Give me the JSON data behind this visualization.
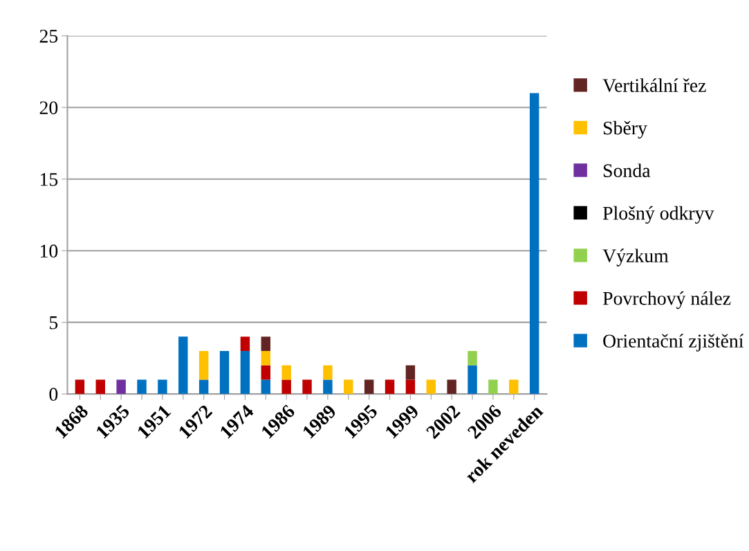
{
  "chart_data": {
    "type": "bar",
    "stacked": true,
    "categories": [
      "1868",
      null,
      "1935",
      null,
      "1951",
      null,
      "1972",
      null,
      "1974",
      null,
      "1986",
      null,
      "1989",
      null,
      "1995",
      null,
      "1999",
      null,
      "2002",
      null,
      "2006",
      null,
      "rok neveden"
    ],
    "series": [
      {
        "name": "Orientační zjištění",
        "color": "#0070c0",
        "values": [
          0,
          0,
          0,
          1,
          1,
          4,
          1,
          3,
          3,
          1,
          0,
          0,
          1,
          0,
          0,
          0,
          0,
          0,
          0,
          2,
          0,
          0,
          21
        ]
      },
      {
        "name": "Povrchový nález",
        "color": "#c00000",
        "values": [
          1,
          1,
          0,
          0,
          0,
          0,
          0,
          0,
          1,
          1,
          1,
          1,
          0,
          0,
          0,
          1,
          1,
          0,
          0,
          0,
          0,
          0,
          0
        ]
      },
      {
        "name": "Výzkum",
        "color": "#92d050",
        "values": [
          0,
          0,
          0,
          0,
          0,
          0,
          0,
          0,
          0,
          0,
          0,
          0,
          0,
          0,
          0,
          0,
          0,
          0,
          0,
          1,
          1,
          0,
          0
        ]
      },
      {
        "name": "Plošný odkryv",
        "color": "#000000",
        "values": [
          0,
          0,
          0,
          0,
          0,
          0,
          0,
          0,
          0,
          0,
          0,
          0,
          0,
          0,
          0,
          0,
          0,
          0,
          0,
          0,
          0,
          0,
          0
        ]
      },
      {
        "name": "Sonda",
        "color": "#7030a0",
        "values": [
          0,
          0,
          1,
          0,
          0,
          0,
          0,
          0,
          0,
          0,
          0,
          0,
          0,
          0,
          0,
          0,
          0,
          0,
          0,
          0,
          0,
          0,
          0
        ]
      },
      {
        "name": "Sběry",
        "color": "#ffc000",
        "values": [
          0,
          0,
          0,
          0,
          0,
          0,
          2,
          0,
          0,
          1,
          1,
          0,
          1,
          1,
          0,
          0,
          0,
          1,
          0,
          0,
          0,
          1,
          0
        ]
      },
      {
        "name": "Vertikální řez",
        "color": "#632523",
        "values": [
          0,
          0,
          0,
          0,
          0,
          0,
          0,
          0,
          0,
          1,
          0,
          0,
          0,
          0,
          1,
          0,
          1,
          0,
          1,
          0,
          0,
          0,
          0
        ]
      }
    ],
    "ylim": [
      0,
      25
    ],
    "yticks": [
      0,
      5,
      10,
      15,
      20,
      25
    ],
    "grid": "y",
    "legend": "right"
  }
}
